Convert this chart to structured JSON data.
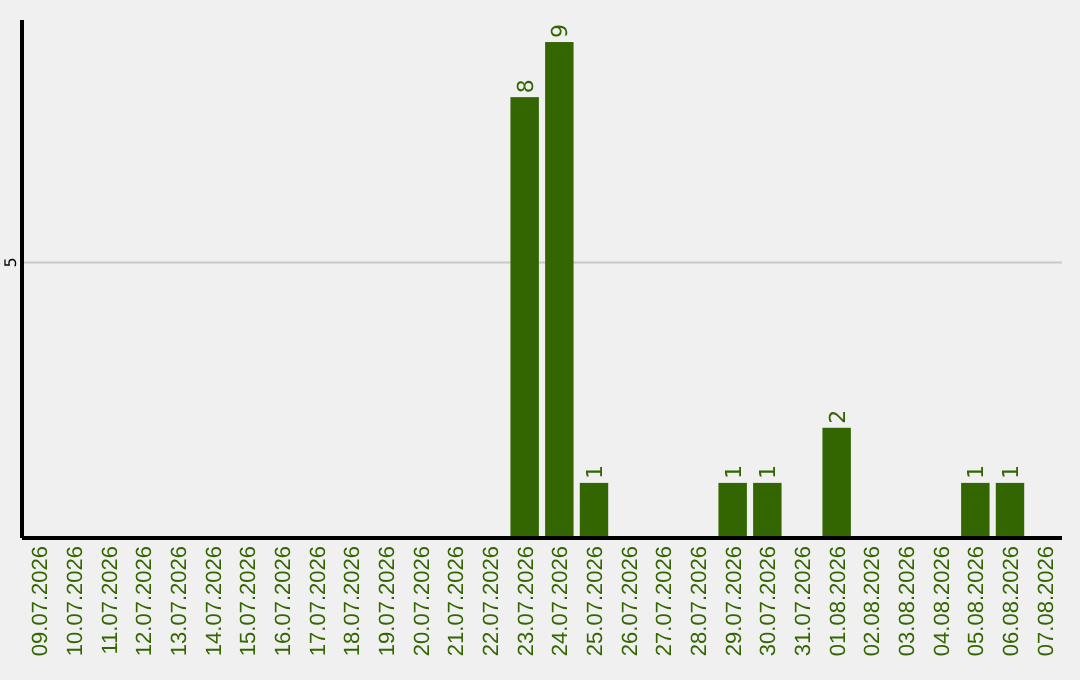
{
  "chart_data": {
    "type": "bar",
    "categories": [
      "09.07.2026",
      "10.07.2026",
      "11.07.2026",
      "12.07.2026",
      "13.07.2026",
      "14.07.2026",
      "15.07.2026",
      "16.07.2026",
      "17.07.2026",
      "18.07.2026",
      "19.07.2026",
      "20.07.2026",
      "21.07.2026",
      "22.07.2026",
      "23.07.2026",
      "24.07.2026",
      "25.07.2026",
      "26.07.2026",
      "27.07.2026",
      "28.07.2026",
      "29.07.2026",
      "30.07.2026",
      "31.07.2026",
      "01.08.2026",
      "02.08.2026",
      "03.08.2026",
      "04.08.2026",
      "05.08.2026",
      "06.08.2026",
      "07.08.2026"
    ],
    "values": [
      null,
      null,
      null,
      null,
      null,
      null,
      null,
      null,
      null,
      null,
      null,
      null,
      null,
      null,
      8,
      9,
      1,
      null,
      null,
      null,
      1,
      1,
      null,
      2,
      null,
      null,
      null,
      1,
      1,
      null
    ],
    "data_labels": true,
    "color": "#336600",
    "ylim": [
      0,
      9.4
    ],
    "ref_lines": [
      {
        "axis": "y",
        "value": 5,
        "label": "5",
        "color": "#c8c8c8"
      }
    ]
  }
}
